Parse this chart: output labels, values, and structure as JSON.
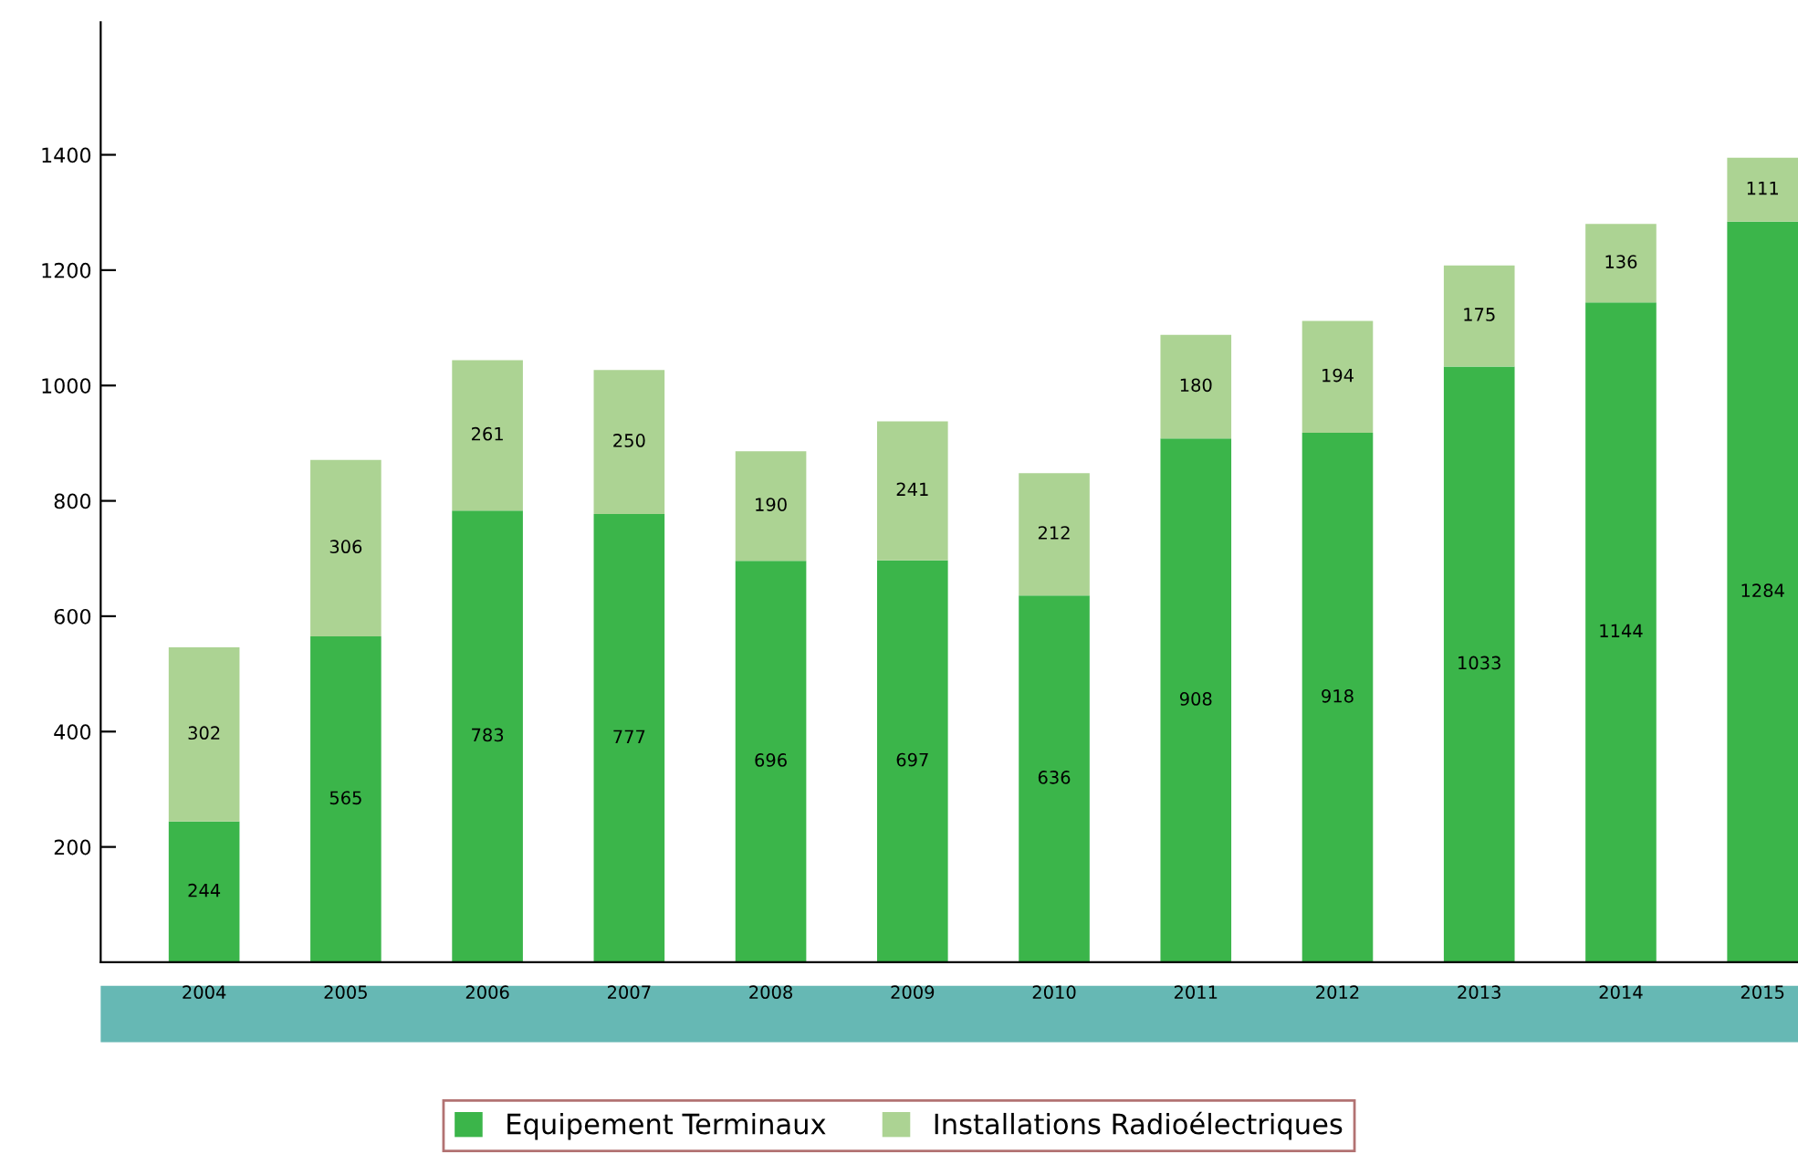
{
  "chart_data": {
    "type": "bar",
    "stacked": true,
    "data_labels": true,
    "categories": [
      "2004",
      "2005",
      "2006",
      "2007",
      "2008",
      "2009",
      "2010",
      "2011",
      "2012",
      "2013",
      "2014",
      "2015"
    ],
    "series": [
      {
        "name": "Equipement Terminaux",
        "color": "#3bb54a",
        "values": [
          244,
          565,
          783,
          777,
          696,
          697,
          636,
          908,
          918,
          1033,
          1144,
          1284
        ]
      },
      {
        "name": "Installations Radioélectriques",
        "color": "#acd393",
        "values": [
          302,
          306,
          261,
          250,
          190,
          241,
          212,
          180,
          194,
          175,
          136,
          111
        ]
      }
    ],
    "ylim": [
      0,
      1630
    ],
    "yticks": [
      200,
      400,
      600,
      800,
      1000,
      1200,
      1400
    ],
    "grid": false,
    "legend": "bottom"
  }
}
